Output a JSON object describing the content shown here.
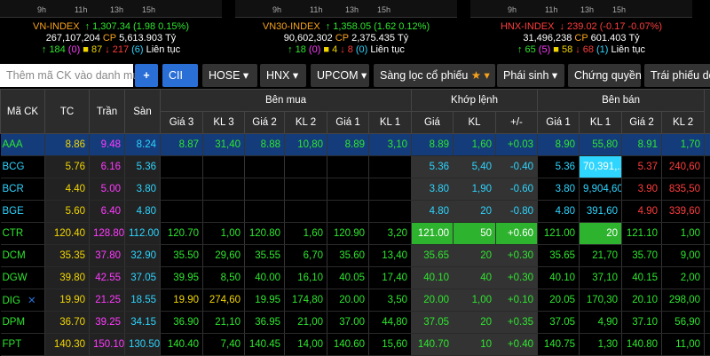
{
  "indices": [
    {
      "name": "VN-INDEX",
      "change": "1,307.34 (1.98 0.15%)",
      "volume": "267,107,204",
      "volume_unit": "CP",
      "value": "5,613.903",
      "value_unit": "Tỷ",
      "up": "184",
      "up_ceiling": "(0)",
      "unchanged": "87",
      "down": "217",
      "down_floor": "(6)",
      "status": "Liên tục",
      "ticks": [
        "9h",
        "11h",
        "13h",
        "15h"
      ]
    },
    {
      "name": "VN30-INDEX",
      "change": "1,358.05 (1.62 0.12%)",
      "volume": "90,602,302",
      "volume_unit": "CP",
      "value": "2,375.435",
      "value_unit": "Tỷ",
      "up": "18",
      "up_ceiling": "(0)",
      "unchanged": "4",
      "down": "8",
      "down_floor": "(0)",
      "status": "Liên tục",
      "ticks": [
        "9h",
        "11h",
        "13h",
        "15h"
      ]
    },
    {
      "name": "HNX-INDEX",
      "change": "239.02 (-0.17 -0.07%)",
      "volume": "31,496,238",
      "volume_unit": "CP",
      "value": "601.403",
      "value_unit": "Tỷ",
      "up": "65",
      "up_ceiling": "(5)",
      "unchanged": "58",
      "down": "68",
      "down_floor": "(1)",
      "status": "Liên tục",
      "ticks": [
        "9h",
        "11h",
        "13h",
        "15h"
      ]
    }
  ],
  "toolbar": {
    "search_placeholder": "Thêm mã CK vào danh mục",
    "add_button": "+",
    "items": [
      "CII",
      "HOSE",
      "HNX",
      "UPCOM",
      "Sàng lọc cổ phiếu",
      "Phái sinh",
      "Chứng quyền",
      "Trái phiếu doa"
    ]
  },
  "table": {
    "headers": {
      "symbol": "Mã CK",
      "ref": "TC",
      "ceiling": "Trần",
      "floor": "Sàn",
      "groups": [
        "Bên mua",
        "Khớp lệnh",
        "Bên bán"
      ],
      "columns": [
        "Giá 3",
        "KL 3",
        "Giá 2",
        "KL 2",
        "Giá 1",
        "KL 1",
        "Giá",
        "KL",
        "+/-",
        "Giá 1",
        "KL 1",
        "Giá 2",
        "KL 2"
      ]
    },
    "rows": [
      {
        "symbol": "AAA",
        "cells": [
          "8.86",
          "9.48",
          "8.24",
          "8.87",
          "31,40",
          "8.88",
          "10,80",
          "8.89",
          "3,10",
          "8.89",
          "1,60",
          "+0.03",
          "8.90",
          "55,80",
          "8.91",
          "1,70"
        ]
      },
      {
        "symbol": "BCG",
        "cells": [
          "5.76",
          "6.16",
          "5.36",
          null,
          null,
          null,
          null,
          null,
          null,
          "5.36",
          "5,40",
          "-0.40",
          "5.36",
          "70,391,...",
          "5.37",
          "240,60"
        ]
      },
      {
        "symbol": "BCR",
        "cells": [
          "4.40",
          "5.00",
          "3.80",
          null,
          null,
          null,
          null,
          null,
          null,
          "3.80",
          "1,90",
          "-0.60",
          "3.80",
          "9,904,60",
          "3.90",
          "835,50"
        ]
      },
      {
        "symbol": "BGE",
        "cells": [
          "5.60",
          "6.40",
          "4.80",
          null,
          null,
          null,
          null,
          null,
          null,
          "4.80",
          "20",
          "-0.80",
          "4.80",
          "391,60",
          "4.90",
          "339,60"
        ]
      },
      {
        "symbol": "CTR",
        "cells": [
          "120.40",
          "128.80",
          "112.00",
          "120.70",
          "1,00",
          "120.80",
          "1,60",
          "120.90",
          "3,20",
          "121.00",
          "50",
          "+0.60",
          "121.00",
          "20",
          "121.10",
          "1,00"
        ]
      },
      {
        "symbol": "DCM",
        "cells": [
          "35.35",
          "37.80",
          "32.90",
          "35.50",
          "29,60",
          "35.55",
          "6,70",
          "35.60",
          "13,40",
          "35.65",
          "20",
          "+0.30",
          "35.65",
          "21,70",
          "35.70",
          "9,00"
        ]
      },
      {
        "symbol": "DGW",
        "cells": [
          "39.80",
          "42.55",
          "37.05",
          "39.95",
          "8,50",
          "40.00",
          "16,10",
          "40.05",
          "17,40",
          "40.10",
          "40",
          "+0.30",
          "40.10",
          "37,10",
          "40.15",
          "2,00"
        ]
      },
      {
        "symbol": "DIG",
        "cells": [
          "19.90",
          "21.25",
          "18.55",
          "19.90",
          "274,60",
          "19.95",
          "174,80",
          "20.00",
          "3,50",
          "20.00",
          "1,00",
          "+0.10",
          "20.05",
          "170,30",
          "20.10",
          "298,00"
        ]
      },
      {
        "symbol": "DPM",
        "cells": [
          "36.70",
          "39.25",
          "34.15",
          "36.90",
          "21,10",
          "36.95",
          "21,00",
          "37.00",
          "44,80",
          "37.05",
          "20",
          "+0.35",
          "37.05",
          "4,90",
          "37.10",
          "56,90"
        ]
      },
      {
        "symbol": "FPT",
        "cells": [
          "140.30",
          "150.10",
          "130.50",
          "140.40",
          "7,40",
          "140.45",
          "14,00",
          "140.60",
          "15,60",
          "140.70",
          "10",
          "+0.40",
          "140.75",
          "1,30",
          "140.80",
          "11,00"
        ]
      }
    ]
  }
}
